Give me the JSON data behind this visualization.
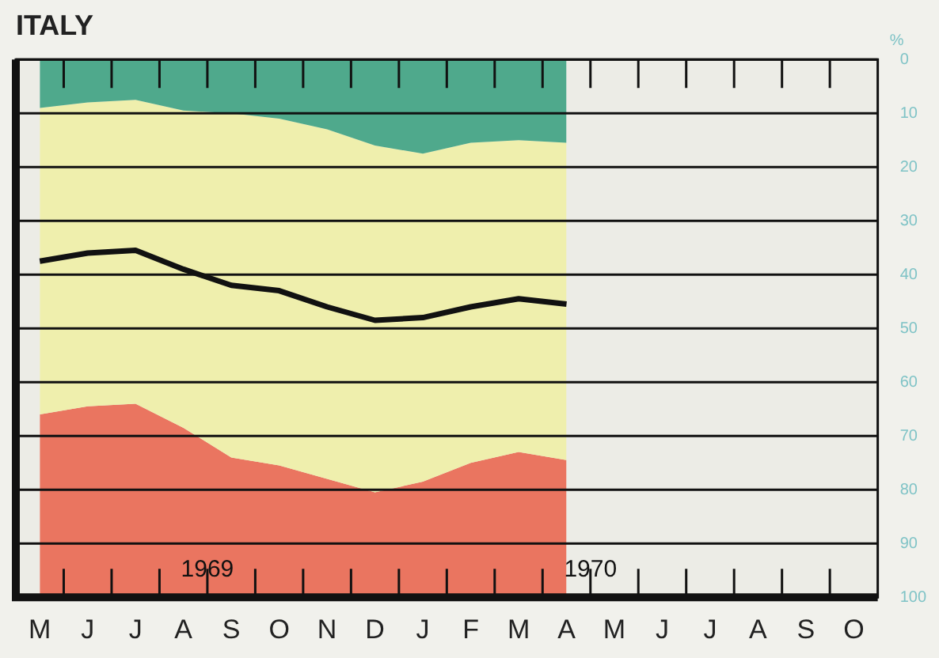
{
  "chart_data": {
    "type": "area",
    "title": "ITALY",
    "ylabel": "%",
    "stacked": true,
    "categories": [
      "M",
      "J",
      "J",
      "A",
      "S",
      "O",
      "N",
      "D",
      "J",
      "F",
      "M",
      "A",
      "M",
      "J",
      "J",
      "A",
      "S",
      "O"
    ],
    "ylim": [
      100,
      0
    ],
    "yticks": [
      0,
      10,
      20,
      30,
      40,
      50,
      60,
      70,
      80,
      90,
      100
    ],
    "grid": "y",
    "legend": false,
    "series": [
      {
        "color": "#4fa98c",
        "values": [
          9,
          8,
          7.5,
          9.5,
          10,
          11,
          13,
          16,
          17.5,
          15.5,
          15,
          15.5,
          null,
          null,
          null,
          null,
          null,
          null
        ]
      },
      {
        "color": "#efefad",
        "values": [
          57,
          56.5,
          56.5,
          59,
          64,
          64.5,
          65,
          64.5,
          61,
          59.5,
          58,
          59,
          null,
          null,
          null,
          null,
          null,
          null
        ]
      },
      {
        "color": "#ea7560",
        "values": [
          34,
          35.5,
          36,
          31.5,
          26,
          24.5,
          22,
          19.5,
          21.5,
          25,
          27,
          25.5,
          null,
          null,
          null,
          null,
          null,
          null
        ]
      },
      {
        "type": "line",
        "color": "#111111",
        "values": [
          37.5,
          36,
          35.5,
          39,
          42,
          43,
          46,
          48.5,
          48,
          46,
          44.5,
          45.5,
          null,
          null,
          null,
          null,
          null,
          null
        ]
      }
    ],
    "annotations": [
      "1969",
      "1970"
    ]
  }
}
